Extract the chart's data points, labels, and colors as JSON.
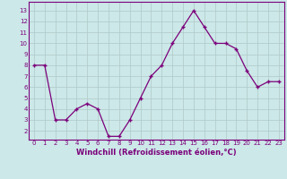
{
  "x": [
    0,
    1,
    2,
    3,
    4,
    5,
    6,
    7,
    8,
    9,
    10,
    11,
    12,
    13,
    14,
    15,
    16,
    17,
    18,
    19,
    20,
    21,
    22,
    23
  ],
  "y": [
    8,
    8,
    3,
    3,
    4,
    4.5,
    4,
    1.5,
    1.5,
    3,
    5,
    7,
    8,
    10,
    11.5,
    13,
    11.5,
    10,
    10,
    9.5,
    7.5,
    6,
    6.5,
    6.5
  ],
  "line_color": "#7B007B",
  "marker": "+",
  "bg_color": "#cce8e8",
  "grid_color": "#b0c8c8",
  "xlabel": "Windchill (Refroidissement éolien,°C)",
  "yticks": [
    2,
    3,
    4,
    5,
    6,
    7,
    8,
    9,
    10,
    11,
    12,
    13
  ],
  "ylim": [
    1.2,
    13.8
  ],
  "xlim": [
    -0.5,
    23.5
  ],
  "xlabel_color": "#7B007B",
  "tick_color": "#7B007B",
  "tick_fontsize": 5.0,
  "xlabel_fontsize": 6.0
}
